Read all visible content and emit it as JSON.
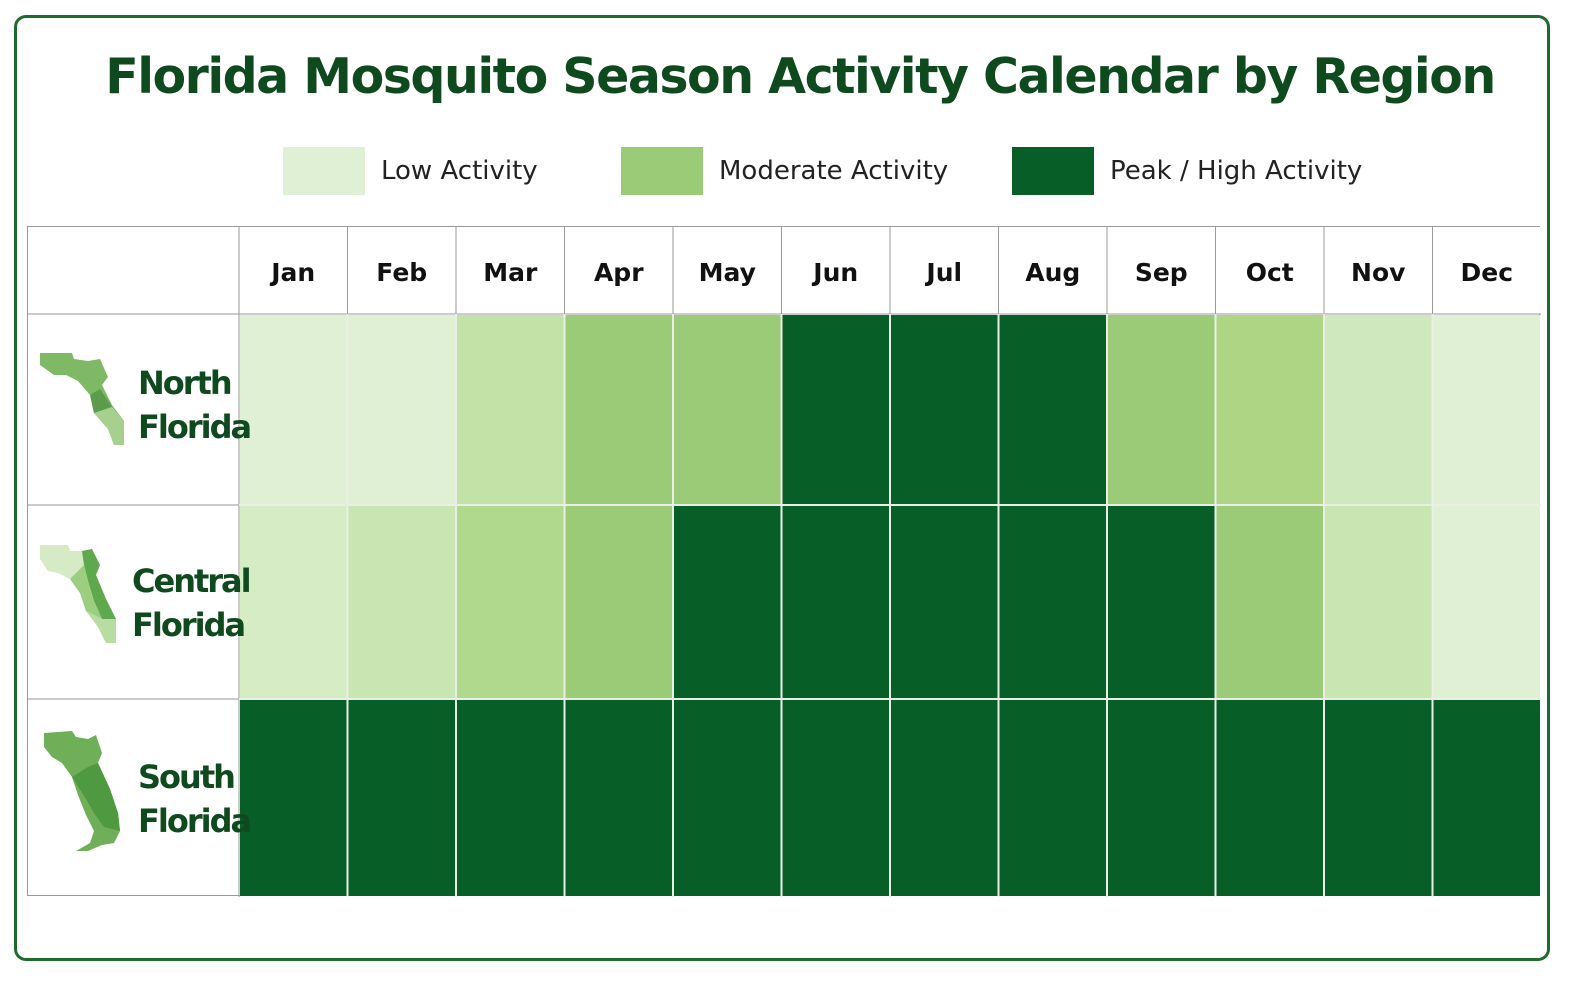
{
  "title": "Florida Mosquito Season Activity Calendar by Region",
  "legend": [
    {
      "label": "Low Activity",
      "color": "#dff0d4"
    },
    {
      "label": "Moderate Activity",
      "color": "#9ccb78"
    },
    {
      "label": "Peak / High Activity",
      "color": "#075e27"
    }
  ],
  "chart_data": {
    "type": "heatmap",
    "title": "Florida Mosquito Season Activity Calendar by Region",
    "columns": [
      "Jan",
      "Feb",
      "Mar",
      "Apr",
      "May",
      "Jun",
      "Jul",
      "Aug",
      "Sep",
      "Oct",
      "Nov",
      "Dec"
    ],
    "rows": [
      {
        "region": "North Florida",
        "label_lines": [
          "North",
          "Florida"
        ]
      },
      {
        "region": "Central Florida",
        "label_lines": [
          "Central",
          "Florida"
        ]
      },
      {
        "region": "South Florida",
        "label_lines": [
          "South",
          "Florida"
        ]
      }
    ],
    "levels": [
      "Low Activity",
      "Moderate Activity",
      "Peak / High Activity"
    ],
    "values": [
      [
        "Low Activity",
        "Low Activity",
        "Moderate Activity",
        "Moderate Activity",
        "Moderate Activity",
        "Peak / High Activity",
        "Peak / High Activity",
        "Peak / High Activity",
        "Moderate Activity",
        "Moderate Activity",
        "Low Activity",
        "Low Activity"
      ],
      [
        "Low Activity",
        "Low Activity",
        "Moderate Activity",
        "Moderate Activity",
        "Peak / High Activity",
        "Peak / High Activity",
        "Peak / High Activity",
        "Peak / High Activity",
        "Peak / High Activity",
        "Moderate Activity",
        "Low Activity",
        "Low Activity"
      ],
      [
        "Peak / High Activity",
        "Peak / High Activity",
        "Peak / High Activity",
        "Peak / High Activity",
        "Peak / High Activity",
        "Peak / High Activity",
        "Peak / High Activity",
        "Peak / High Activity",
        "Peak / High Activity",
        "Peak / High Activity",
        "Peak / High Activity",
        "Peak / High Activity"
      ]
    ],
    "cell_colors": [
      [
        "#dff0d4",
        "#dff0d4",
        "#c2e2a7",
        "#9ccb78",
        "#9ccb78",
        "#075e27",
        "#075e27",
        "#075e27",
        "#9ccb78",
        "#add583",
        "#cfe8bd",
        "#dff0d4"
      ],
      [
        "#d5ecc4",
        "#c9e6b2",
        "#b0d98e",
        "#9ccb78",
        "#075e27",
        "#075e27",
        "#075e27",
        "#075e27",
        "#075e27",
        "#9ccb78",
        "#c9e6b2",
        "#dff0d4"
      ],
      [
        "#075e27",
        "#075e27",
        "#075e27",
        "#075e27",
        "#075e27",
        "#075e27",
        "#075e27",
        "#075e27",
        "#075e27",
        "#075e27",
        "#075e27",
        "#075e27"
      ]
    ],
    "legend_position": "top"
  }
}
